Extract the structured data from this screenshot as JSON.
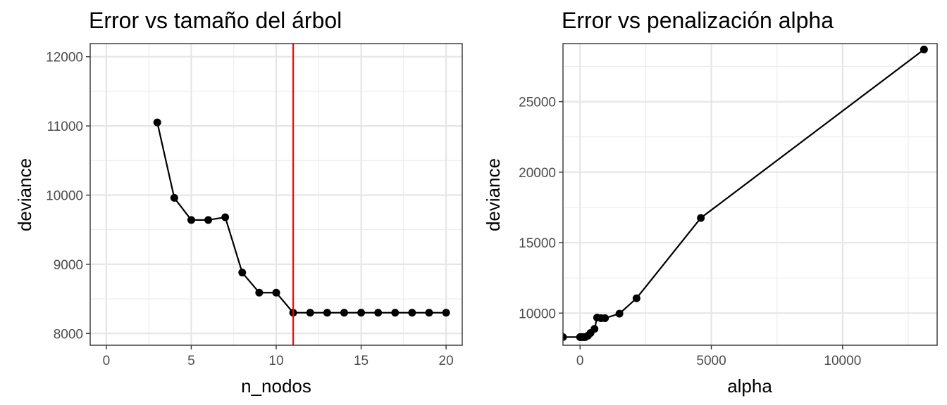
{
  "chart_data": [
    {
      "id": "left",
      "type": "line",
      "title": "Error vs tamaño del árbol",
      "xlabel": "n_nodos",
      "ylabel": "deviance",
      "xlim": [
        -0.95,
        20.95
      ],
      "ylim": [
        7830,
        12190
      ],
      "xticks": [
        0,
        5,
        10,
        15,
        20
      ],
      "xminor": [
        2.5,
        7.5,
        12.5,
        17.5
      ],
      "yticks": [
        8000,
        9000,
        10000,
        11000,
        12000
      ],
      "yminor": [
        8500,
        9500,
        10500,
        11500
      ],
      "series": [
        {
          "name": "deviance",
          "color": "#000000",
          "x": [
            3,
            4,
            5,
            6,
            7,
            8,
            9,
            10,
            11,
            12,
            13,
            14,
            15,
            16,
            17,
            18,
            19,
            20
          ],
          "y": [
            11050,
            9960,
            9640,
            9640,
            9680,
            8880,
            8590,
            8590,
            8300,
            8300,
            8300,
            8300,
            8300,
            8300,
            8300,
            8300,
            8300,
            8300
          ]
        }
      ],
      "vline": {
        "x": 11,
        "color": "#ff0000"
      }
    },
    {
      "id": "right",
      "type": "line",
      "title": "Error vs penalización alpha",
      "xlabel": "alpha",
      "ylabel": "deviance",
      "xlim": [
        -650,
        13600
      ],
      "ylim": [
        7720,
        29120
      ],
      "xticks": [
        0,
        5000,
        10000
      ],
      "xminor": [
        2500,
        7500,
        12500
      ],
      "yticks": [
        10000,
        15000,
        20000,
        25000
      ],
      "yminor": [
        12500,
        17500,
        22500,
        27500
      ],
      "series": [
        {
          "name": "deviance",
          "color": "#000000",
          "x": [
            -650,
            0,
            50,
            100,
            150,
            200,
            300,
            400,
            550,
            650,
            800,
            950,
            1500,
            2150,
            4600,
            13100
          ],
          "y": [
            8300,
            8300,
            8300,
            8300,
            8300,
            8300,
            8400,
            8590,
            8880,
            9680,
            9640,
            9640,
            9960,
            11050,
            16750,
            28700
          ]
        }
      ]
    }
  ]
}
